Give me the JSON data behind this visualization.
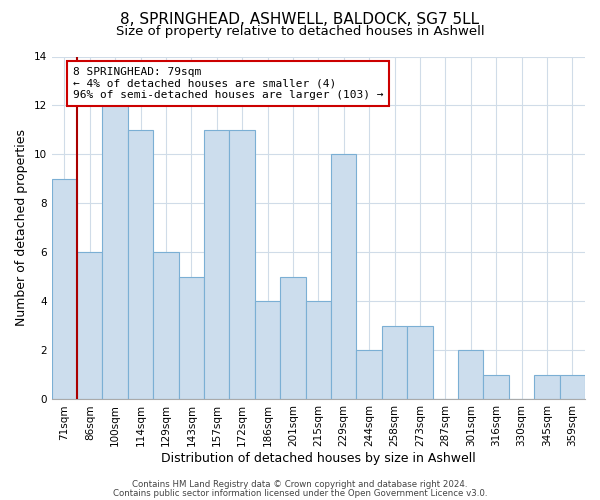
{
  "title": "8, SPRINGHEAD, ASHWELL, BALDOCK, SG7 5LL",
  "subtitle": "Size of property relative to detached houses in Ashwell",
  "xlabel": "Distribution of detached houses by size in Ashwell",
  "ylabel": "Number of detached properties",
  "bar_labels": [
    "71sqm",
    "86sqm",
    "100sqm",
    "114sqm",
    "129sqm",
    "143sqm",
    "157sqm",
    "172sqm",
    "186sqm",
    "201sqm",
    "215sqm",
    "229sqm",
    "244sqm",
    "258sqm",
    "273sqm",
    "287sqm",
    "301sqm",
    "316sqm",
    "330sqm",
    "345sqm",
    "359sqm"
  ],
  "bar_values": [
    9,
    6,
    12,
    11,
    6,
    5,
    11,
    11,
    4,
    5,
    4,
    10,
    2,
    3,
    3,
    0,
    2,
    1,
    0,
    1,
    1
  ],
  "bar_color": "#ccdded",
  "bar_edge_color": "#7bafd4",
  "annotation_text": "8 SPRINGHEAD: 79sqm\n← 4% of detached houses are smaller (4)\n96% of semi-detached houses are larger (103) →",
  "annotation_box_color": "#ffffff",
  "annotation_box_edgecolor": "#cc0000",
  "red_line_x": 0.5,
  "ylim": [
    0,
    14
  ],
  "yticks": [
    0,
    2,
    4,
    6,
    8,
    10,
    12,
    14
  ],
  "footer_line1": "Contains HM Land Registry data © Crown copyright and database right 2024.",
  "footer_line2": "Contains public sector information licensed under the Open Government Licence v3.0.",
  "bg_color": "#ffffff",
  "plot_bg_color": "#ffffff",
  "grid_color": "#d0dce8",
  "red_line_color": "#aa0000",
  "title_fontsize": 11,
  "subtitle_fontsize": 9.5,
  "tick_fontsize": 7.5,
  "ylabel_fontsize": 9,
  "xlabel_fontsize": 9,
  "annotation_fontsize": 8
}
